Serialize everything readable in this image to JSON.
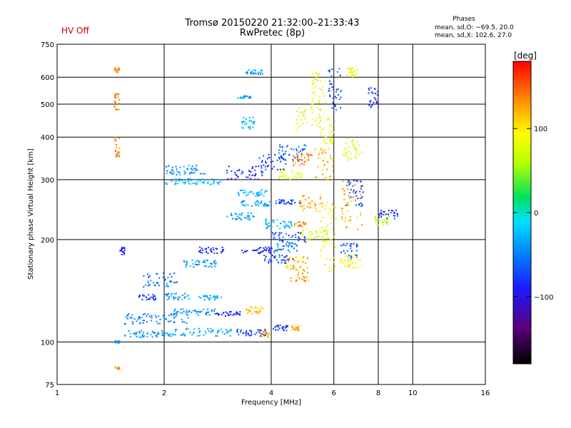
{
  "header": {
    "hv_status": "HV Off",
    "title": "Tromsø 20150220 21:32:00–21:33:43",
    "subtitle": "RwPretec (8p)",
    "phase_label": "Phases",
    "stat_o": "mean, sd,O: −69.5, 20.0",
    "stat_x": "mean, sd,X: 102.6, 27.0"
  },
  "colorbar": {
    "label": "[deg]",
    "ticks": [
      {
        "v": 100,
        "label": "100"
      },
      {
        "v": 0,
        "label": "0"
      },
      {
        "v": -100,
        "label": "−100"
      }
    ],
    "range": [
      -180,
      180
    ]
  },
  "chart_data": {
    "type": "scatter",
    "title": "Tromsø 20150220 21:32:00–21:33:43",
    "subtitle": "RwPretec (8p)",
    "xlabel": "Frequency [MHz]",
    "ylabel": "Stationary phase Virtual Height [km]",
    "x_scale": "log",
    "y_scale": "log",
    "xlim": [
      1,
      16
    ],
    "ylim": [
      75,
      750
    ],
    "x_ticks": [
      {
        "v": 1,
        "label": "1"
      },
      {
        "v": 2,
        "label": "2"
      },
      {
        "v": 4,
        "label": "4"
      },
      {
        "v": 6,
        "label": "6"
      },
      {
        "v": 8,
        "label": "8"
      },
      {
        "v": 10,
        "label": "10"
      },
      {
        "v": 16,
        "label": "16"
      }
    ],
    "y_ticks": [
      {
        "v": 75,
        "label": "75"
      },
      {
        "v": 100,
        "label": "100"
      },
      {
        "v": 200,
        "label": "200"
      },
      {
        "v": 300,
        "label": "300"
      },
      {
        "v": 400,
        "label": "400"
      },
      {
        "v": 500,
        "label": "500"
      },
      {
        "v": 600,
        "label": "600"
      },
      {
        "v": 750,
        "label": "750"
      }
    ],
    "grid": true,
    "color_by": "phase [deg]",
    "clusters": [
      {
        "f": [
          1.45,
          1.5
        ],
        "h": [
          99,
          101
        ],
        "ph": [
          -70,
          -55
        ]
      },
      {
        "f": [
          1.55,
          2.1
        ],
        "h": [
          103,
          108
        ],
        "ph": [
          -75,
          -40
        ]
      },
      {
        "f": [
          2.05,
          3.1
        ],
        "h": [
          104,
          110
        ],
        "ph": [
          -65,
          -25
        ]
      },
      {
        "f": [
          3.2,
          3.9
        ],
        "h": [
          104,
          109
        ],
        "ph": [
          -110,
          -70
        ]
      },
      {
        "f": [
          3.75,
          3.95
        ],
        "h": [
          103,
          108
        ],
        "ph": [
          110,
          150
        ]
      },
      {
        "f": [
          4.05,
          4.45
        ],
        "h": [
          108,
          112
        ],
        "ph": [
          -105,
          -80
        ]
      },
      {
        "f": [
          4.55,
          4.8
        ],
        "h": [
          108,
          112
        ],
        "ph": [
          110,
          150
        ]
      },
      {
        "f": [
          1.55,
          2.4
        ],
        "h": [
          113,
          122
        ],
        "ph": [
          -80,
          -50
        ]
      },
      {
        "f": [
          2.1,
          2.8
        ],
        "h": [
          120,
          125
        ],
        "ph": [
          -75,
          -40
        ]
      },
      {
        "f": [
          2.8,
          3.3
        ],
        "h": [
          119,
          123
        ],
        "ph": [
          -110,
          -85
        ]
      },
      {
        "f": [
          3.4,
          3.8
        ],
        "h": [
          121,
          127
        ],
        "ph": [
          110,
          145
        ]
      },
      {
        "f": [
          1.7,
          1.9
        ],
        "h": [
          133,
          138
        ],
        "ph": [
          -100,
          -80
        ]
      },
      {
        "f": [
          2.0,
          2.35
        ],
        "h": [
          133,
          139
        ],
        "ph": [
          -75,
          -30
        ]
      },
      {
        "f": [
          2.5,
          2.9
        ],
        "h": [
          133,
          137
        ],
        "ph": [
          -70,
          -30
        ]
      },
      {
        "f": [
          1.75,
          2.2
        ],
        "h": [
          145,
          160
        ],
        "ph": [
          -90,
          -50
        ]
      },
      {
        "f": [
          2.25,
          2.8
        ],
        "h": [
          166,
          174
        ],
        "ph": [
          -75,
          -35
        ]
      },
      {
        "f": [
          2.5,
          2.95
        ],
        "h": [
          182,
          190
        ],
        "ph": [
          -110,
          -80
        ]
      },
      {
        "f": [
          3.3,
          4.1
        ],
        "h": [
          182,
          190
        ],
        "ph": [
          -115,
          -85
        ]
      },
      {
        "f": [
          4.1,
          4.8
        ],
        "h": [
          184,
          196
        ],
        "ph": [
          -80,
          -40
        ]
      },
      {
        "f": [
          3.8,
          4.6
        ],
        "h": [
          170,
          180
        ],
        "ph": [
          -100,
          -70
        ]
      },
      {
        "f": [
          4.4,
          5.1
        ],
        "h": [
          165,
          178
        ],
        "ph": [
          100,
          145
        ]
      },
      {
        "f": [
          4.5,
          5.1
        ],
        "h": [
          150,
          165
        ],
        "ph": [
          110,
          160
        ]
      },
      {
        "f": [
          4.0,
          5.0
        ],
        "h": [
          195,
          210
        ],
        "ph": [
          -100,
          -70
        ]
      },
      {
        "f": [
          4.8,
          5.8
        ],
        "h": [
          195,
          215
        ],
        "ph": [
          60,
          120
        ]
      },
      {
        "f": [
          5.5,
          6.1
        ],
        "h": [
          160,
          260
        ],
        "ph": [
          70,
          120
        ]
      },
      {
        "f": [
          6.2,
          7.0
        ],
        "h": [
          175,
          195
        ],
        "ph": [
          -100,
          -60
        ]
      },
      {
        "f": [
          6.2,
          7.2
        ],
        "h": [
          165,
          180
        ],
        "ph": [
          80,
          120
        ]
      },
      {
        "f": [
          3.0,
          3.6
        ],
        "h": [
          228,
          240
        ],
        "ph": [
          -70,
          -30
        ]
      },
      {
        "f": [
          3.3,
          4.0
        ],
        "h": [
          250,
          260
        ],
        "ph": [
          -70,
          -30
        ]
      },
      {
        "f": [
          4.1,
          4.9
        ],
        "h": [
          254,
          262
        ],
        "ph": [
          -100,
          -70
        ]
      },
      {
        "f": [
          4.8,
          5.6
        ],
        "h": [
          240,
          270
        ],
        "ph": [
          100,
          150
        ]
      },
      {
        "f": [
          3.8,
          4.6
        ],
        "h": [
          215,
          230
        ],
        "ph": [
          -70,
          -20
        ]
      },
      {
        "f": [
          4.6,
          5.0
        ],
        "h": [
          218,
          225
        ],
        "ph": [
          130,
          160
        ]
      },
      {
        "f": [
          3.2,
          3.9
        ],
        "h": [
          268,
          280
        ],
        "ph": [
          -60,
          -20
        ]
      },
      {
        "f": [
          2.0,
          2.9
        ],
        "h": [
          290,
          302
        ],
        "ph": [
          -60,
          -20
        ]
      },
      {
        "f": [
          2.0,
          2.6
        ],
        "h": [
          310,
          330
        ],
        "ph": [
          -80,
          -40
        ]
      },
      {
        "f": [
          3.0,
          3.8
        ],
        "h": [
          300,
          330
        ],
        "ph": [
          -110,
          -80
        ]
      },
      {
        "f": [
          3.7,
          4.4
        ],
        "h": [
          320,
          360
        ],
        "ph": [
          -110,
          -75
        ]
      },
      {
        "f": [
          4.2,
          5.0
        ],
        "h": [
          340,
          380
        ],
        "ph": [
          -90,
          -50
        ]
      },
      {
        "f": [
          4.6,
          5.3
        ],
        "h": [
          330,
          360
        ],
        "ph": [
          130,
          165
        ]
      },
      {
        "f": [
          4.2,
          4.9
        ],
        "h": [
          300,
          320
        ],
        "ph": [
          70,
          110
        ]
      },
      {
        "f": [
          5.3,
          6.0
        ],
        "h": [
          300,
          380
        ],
        "ph": [
          100,
          150
        ]
      },
      {
        "f": [
          5.5,
          6.0
        ],
        "h": [
          380,
          460
        ],
        "ph": [
          60,
          110
        ]
      },
      {
        "f": [
          6.3,
          7.2
        ],
        "h": [
          210,
          300
        ],
        "ph": [
          110,
          150
        ]
      },
      {
        "f": [
          6.5,
          7.3
        ],
        "h": [
          250,
          300
        ],
        "ph": [
          -110,
          -70
        ]
      },
      {
        "f": [
          6.4,
          7.2
        ],
        "h": [
          340,
          400
        ],
        "ph": [
          60,
          90
        ]
      },
      {
        "f": [
          7.8,
          8.6
        ],
        "h": [
          220,
          240
        ],
        "ph": [
          50,
          80
        ]
      },
      {
        "f": [
          8.0,
          9.1
        ],
        "h": [
          230,
          245
        ],
        "ph": [
          -110,
          -80
        ]
      },
      {
        "f": [
          3.3,
          3.6
        ],
        "h": [
          420,
          460
        ],
        "ph": [
          -60,
          -20
        ]
      },
      {
        "f": [
          4.7,
          5.5
        ],
        "h": [
          420,
          500
        ],
        "ph": [
          60,
          120
        ]
      },
      {
        "f": [
          5.8,
          6.3
        ],
        "h": [
          480,
          640
        ],
        "ph": [
          -110,
          -60
        ]
      },
      {
        "f": [
          5.2,
          5.7
        ],
        "h": [
          500,
          620
        ],
        "ph": [
          80,
          120
        ]
      },
      {
        "f": [
          3.2,
          3.5
        ],
        "h": [
          520,
          530
        ],
        "ph": [
          -70,
          -40
        ]
      },
      {
        "f": [
          3.4,
          3.8
        ],
        "h": [
          610,
          630
        ],
        "ph": [
          -70,
          -40
        ]
      },
      {
        "f": [
          6.5,
          7.0
        ],
        "h": [
          600,
          640
        ],
        "ph": [
          70,
          110
        ]
      },
      {
        "f": [
          7.5,
          8.0
        ],
        "h": [
          480,
          560
        ],
        "ph": [
          -110,
          -80
        ]
      },
      {
        "f": [
          1.45,
          1.5
        ],
        "h": [
          620,
          640
        ],
        "ph": [
          130,
          160
        ]
      },
      {
        "f": [
          1.45,
          1.5
        ],
        "h": [
          480,
          540
        ],
        "ph": [
          130,
          160
        ]
      },
      {
        "f": [
          1.45,
          1.5
        ],
        "h": [
          350,
          400
        ],
        "ph": [
          130,
          160
        ]
      },
      {
        "f": [
          1.45,
          1.5
        ],
        "h": [
          83,
          85
        ],
        "ph": [
          130,
          160
        ]
      },
      {
        "f": [
          1.5,
          1.55
        ],
        "h": [
          180,
          190
        ],
        "ph": [
          -110,
          -90
        ]
      }
    ]
  }
}
